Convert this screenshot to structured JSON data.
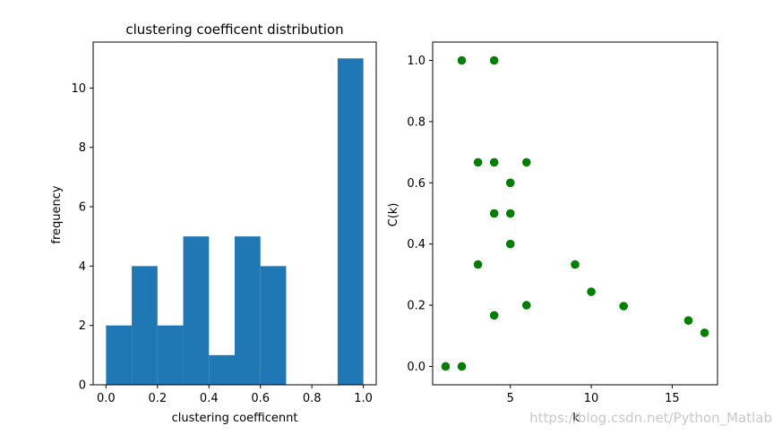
{
  "colors": {
    "bar": "#1f77b4",
    "point": "#008000",
    "axis": "#000000",
    "watermark": "#c8c8c8",
    "background": "#ffffff"
  },
  "watermark": "https://blog.csdn.net/Python_Matlab",
  "chart_data": [
    {
      "type": "bar",
      "title": "clustering coefficent distribution",
      "xlabel": "clustering coefficennt",
      "ylabel": "frequency",
      "bin_edges": [
        0.0,
        0.1,
        0.2,
        0.3,
        0.4,
        0.5,
        0.6,
        0.7,
        0.8,
        0.9,
        1.0
      ],
      "values": [
        2,
        4,
        2,
        5,
        1,
        5,
        4,
        0,
        0,
        11
      ],
      "xlim": [
        -0.05,
        1.05
      ],
      "ylim": [
        0,
        11.55
      ],
      "xticks": [
        0.0,
        0.2,
        0.4,
        0.6,
        0.8,
        1.0
      ],
      "xtick_labels": [
        "0.0",
        "0.2",
        "0.4",
        "0.6",
        "0.8",
        "1.0"
      ],
      "yticks": [
        0,
        2,
        4,
        6,
        8,
        10
      ],
      "ytick_labels": [
        "0",
        "2",
        "4",
        "6",
        "8",
        "10"
      ],
      "grid": false
    },
    {
      "type": "scatter",
      "title": "",
      "xlabel": "k",
      "ylabel": "C(k)",
      "points": [
        {
          "x": 2,
          "y": 1.0
        },
        {
          "x": 4,
          "y": 1.0
        },
        {
          "x": 3,
          "y": 0.667
        },
        {
          "x": 4,
          "y": 0.667
        },
        {
          "x": 6,
          "y": 0.667
        },
        {
          "x": 5,
          "y": 0.6
        },
        {
          "x": 4,
          "y": 0.5
        },
        {
          "x": 5,
          "y": 0.5
        },
        {
          "x": 5,
          "y": 0.4
        },
        {
          "x": 3,
          "y": 0.333
        },
        {
          "x": 9,
          "y": 0.333
        },
        {
          "x": 10,
          "y": 0.244
        },
        {
          "x": 6,
          "y": 0.2
        },
        {
          "x": 12,
          "y": 0.197
        },
        {
          "x": 4,
          "y": 0.167
        },
        {
          "x": 16,
          "y": 0.15
        },
        {
          "x": 17,
          "y": 0.11
        },
        {
          "x": 1,
          "y": 0.0
        },
        {
          "x": 2,
          "y": 0.0
        }
      ],
      "xlim": [
        0.2,
        17.8
      ],
      "ylim": [
        -0.06,
        1.06
      ],
      "xticks": [
        5,
        10,
        15
      ],
      "xtick_labels": [
        "5",
        "10",
        "15"
      ],
      "yticks": [
        0.0,
        0.2,
        0.4,
        0.6,
        0.8,
        1.0
      ],
      "ytick_labels": [
        "0.0",
        "0.2",
        "0.4",
        "0.6",
        "0.8",
        "1.0"
      ],
      "grid": false
    }
  ]
}
